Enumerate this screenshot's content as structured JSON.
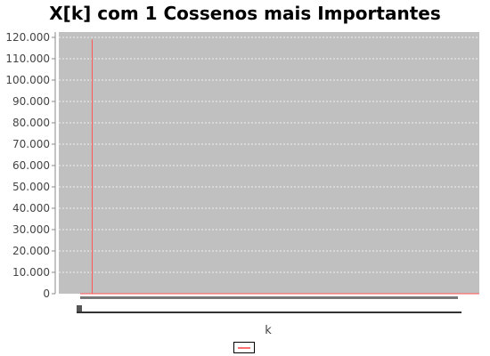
{
  "chart_data": {
    "type": "line",
    "title": "X[k] com 1 Cossenos mais Importantes",
    "xlabel": "k",
    "ylabel": "",
    "ylim": [
      0,
      122500
    ],
    "yticks": [
      0,
      10000,
      20000,
      30000,
      40000,
      50000,
      60000,
      70000,
      80000,
      90000,
      100000,
      110000,
      120000
    ],
    "ytick_labels": [
      "0",
      "10.000",
      "20.000",
      "30.000",
      "40.000",
      "50.000",
      "60.000",
      "70.000",
      "80.000",
      "90.000",
      "100.000",
      "110.000",
      "120.000"
    ],
    "xlim": [
      0,
      100
    ],
    "grid": true,
    "legend_position": "bottom",
    "series": [
      {
        "name": "",
        "color": "#ff5555",
        "x": [
          0,
          3,
          3,
          3,
          100
        ],
        "y": [
          0,
          0,
          119000,
          0,
          0
        ]
      }
    ]
  }
}
